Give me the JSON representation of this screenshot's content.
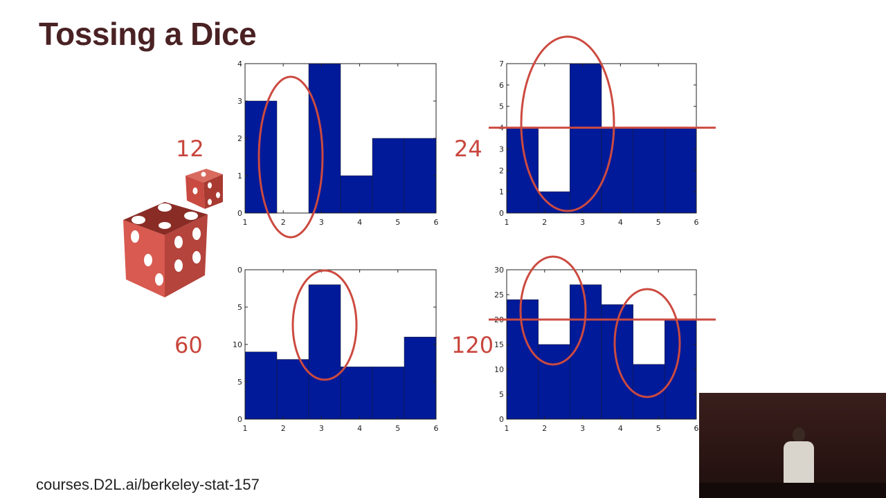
{
  "slide": {
    "title": "Tossing a Dice",
    "footer": "courses.D2L.ai/berkeley-stat-157",
    "counts": [
      "12",
      "24",
      "60",
      "120"
    ]
  },
  "colors": {
    "bar": "#001a99",
    "annotation": "#cc4a40",
    "title": "#4a2224"
  },
  "icons": [
    "dice-icon",
    "webcam-presenter-video"
  ],
  "chart_data": [
    {
      "type": "bar",
      "categories": [
        "1",
        "2",
        "3",
        "4",
        "5",
        "6"
      ],
      "values": [
        3,
        0,
        4,
        1,
        2,
        2
      ],
      "title": "",
      "xlabel": "",
      "ylabel": "",
      "ylim": [
        0,
        4
      ],
      "yticks": [
        "0",
        "1",
        "2",
        "3",
        "4"
      ],
      "xticks": [
        "1",
        "2",
        "3",
        "4",
        "5",
        "6"
      ],
      "tosses_label": "12"
    },
    {
      "type": "bar",
      "categories": [
        "1",
        "2",
        "3",
        "4",
        "5",
        "6"
      ],
      "values": [
        4,
        1,
        7,
        4,
        4,
        4
      ],
      "title": "",
      "xlabel": "",
      "ylabel": "",
      "ylim": [
        0,
        7
      ],
      "yticks": [
        "0",
        "1",
        "2",
        "3",
        "4",
        "5",
        "6",
        "7"
      ],
      "xticks": [
        "1",
        "2",
        "3",
        "4",
        "5",
        "6"
      ],
      "reference_line": 4,
      "tosses_label": "24"
    },
    {
      "type": "bar",
      "categories": [
        "1",
        "2",
        "3",
        "4",
        "5",
        "6"
      ],
      "values": [
        9,
        8,
        18,
        7,
        7,
        11
      ],
      "title": "",
      "xlabel": "",
      "ylabel": "",
      "ylim": [
        0,
        20
      ],
      "yticks": [
        "0",
        "5",
        "10",
        "5",
        "0"
      ],
      "xticks": [
        "1",
        "2",
        "3",
        "4",
        "5",
        "6"
      ],
      "tosses_label": "60"
    },
    {
      "type": "bar",
      "categories": [
        "1",
        "2",
        "3",
        "4",
        "5",
        "6"
      ],
      "values": [
        24,
        15,
        27,
        23,
        11,
        20
      ],
      "title": "",
      "xlabel": "",
      "ylabel": "",
      "ylim": [
        0,
        30
      ],
      "yticks": [
        "0",
        "5",
        "10",
        "15",
        "20",
        "25",
        "30"
      ],
      "xticks": [
        "1",
        "2",
        "3",
        "4",
        "5",
        "6"
      ],
      "reference_line": 20,
      "tosses_label": "120"
    }
  ]
}
